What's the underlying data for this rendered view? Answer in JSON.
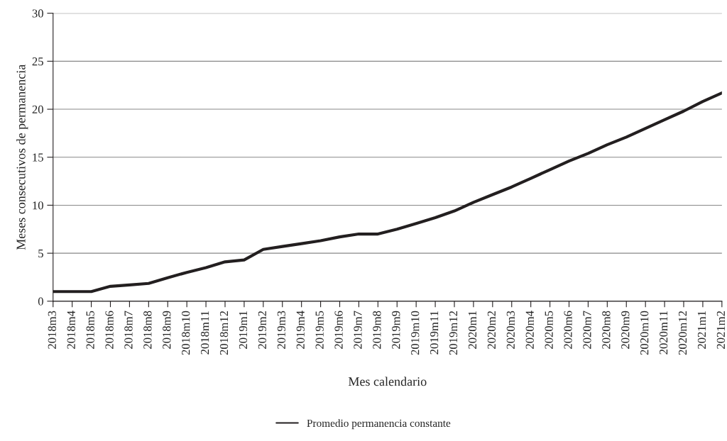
{
  "chart_data": {
    "type": "line",
    "xlabel": "Mes calendario",
    "ylabel": "Meses consecutivos de permanencia",
    "categories": [
      "2018m3",
      "2018m4",
      "2018m5",
      "2018m6",
      "2018m7",
      "2018m8",
      "2018m9",
      "2018m10",
      "2018m11",
      "2018m12",
      "2019m1",
      "2019m2",
      "2019m3",
      "2019m4",
      "2019m5",
      "2019m6",
      "2019m7",
      "2019m8",
      "2019m9",
      "2019m10",
      "2019m11",
      "2019m12",
      "2020m1",
      "2020m2",
      "2020m3",
      "2020m4",
      "2020m5",
      "2020m6",
      "2020m7",
      "2020m8",
      "2020m9",
      "2020m10",
      "2020m11",
      "2020m12",
      "2021m1",
      "2021m2"
    ],
    "series": [
      {
        "name": "Promedio permanencia constante",
        "color": "#231f20",
        "values": [
          1.0,
          1.0,
          1.0,
          1.55,
          1.7,
          1.85,
          2.45,
          3.0,
          3.5,
          4.1,
          4.3,
          5.4,
          5.7,
          6.0,
          6.3,
          6.7,
          7.0,
          7.0,
          7.5,
          8.1,
          8.7,
          9.4,
          10.3,
          11.1,
          11.9,
          12.8,
          13.7,
          14.6,
          15.4,
          16.3,
          17.1,
          18.0,
          18.9,
          19.8,
          20.8,
          21.7
        ]
      }
    ],
    "ylim": [
      0,
      30
    ],
    "yticks": [
      0,
      5,
      10,
      15,
      20,
      25,
      30
    ],
    "grid": "y",
    "legend": "bottom",
    "marker": "none",
    "line_style": "solid"
  }
}
